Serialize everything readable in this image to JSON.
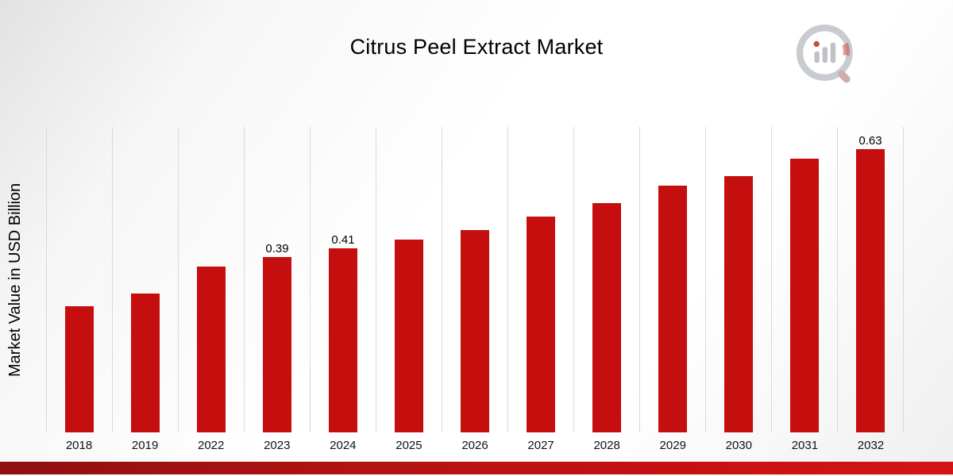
{
  "title": "Citrus Peel Extract Market",
  "ylabel": "Market Value in USD Billion",
  "logo_name": "market-research-future-logo",
  "colors": {
    "bar": "#c50e0e",
    "gridline": "#d9d9d9",
    "ribbon_dark": "#8e1010",
    "ribbon_bright": "#d31414",
    "background_gray": "#e2e2e2"
  },
  "chart_data": {
    "type": "bar",
    "title": "Citrus Peel Extract Market",
    "xlabel": "",
    "ylabel": "Market Value in USD Billion",
    "categories": [
      "2018",
      "2019",
      "2022",
      "2023",
      "2024",
      "2025",
      "2026",
      "2027",
      "2028",
      "2029",
      "2030",
      "2031",
      "2032"
    ],
    "values": [
      0.28,
      0.31,
      0.37,
      0.39,
      0.41,
      0.43,
      0.45,
      0.48,
      0.51,
      0.55,
      0.57,
      0.61,
      0.63
    ],
    "data_labels": [
      "",
      "",
      "",
      "0.39",
      "0.41",
      "",
      "",
      "",
      "",
      "",
      "",
      "",
      "0.63"
    ],
    "ylim": [
      0,
      0.68
    ],
    "grid": "vertical",
    "legend": "none",
    "bar_color": "#c50e0e"
  }
}
